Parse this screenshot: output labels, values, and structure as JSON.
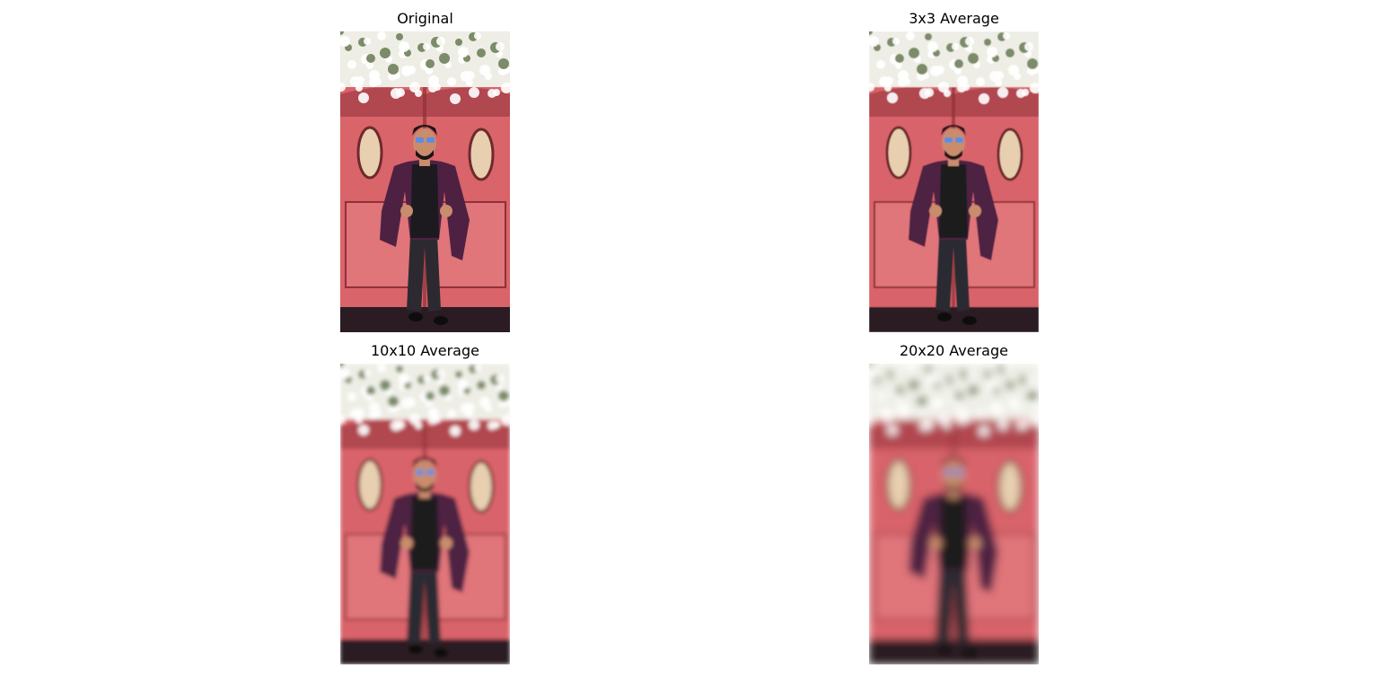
{
  "panels": [
    {
      "title": "Original",
      "blur": 0
    },
    {
      "title": "3x3 Average",
      "blur": 0.6
    },
    {
      "title": "10x10 Average",
      "blur": 2.2
    },
    {
      "title": "20x20 Average",
      "blur": 4.5
    }
  ],
  "scene": {
    "colors": {
      "flowers_light": "#eeeee6",
      "flowers_white": "#ffffff",
      "foliage": "#6f7f5a",
      "door": "#d9646a",
      "door_dark": "#8f3038",
      "door_panel": "#e0757a",
      "window_glass": "#e7cfb0",
      "window_frame": "#6e2a2c",
      "floor": "#2a1c22",
      "jacket": "#4e2142",
      "shirt": "#1d1a1f",
      "pants": "#2c2a30",
      "skin": "#c98c6c",
      "hair": "#1a1416",
      "glasses": "#5a8ee0"
    }
  }
}
